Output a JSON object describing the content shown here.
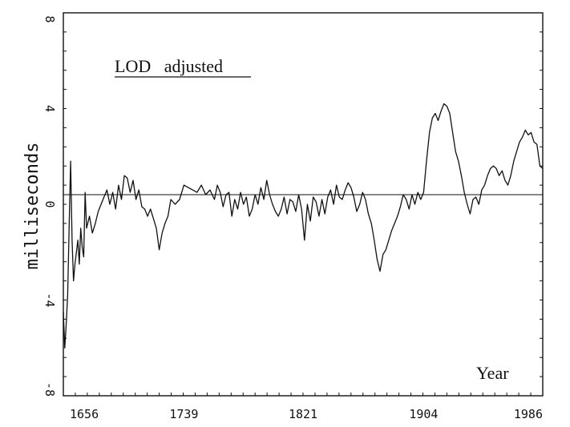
{
  "chart_data": {
    "type": "line",
    "title": "LOD   adjusted",
    "xlabel": "Year",
    "ylabel": "milliseconds",
    "xlim": [
      1656,
      1986
    ],
    "ylim": [
      -8,
      8
    ],
    "xticks": [
      "1656",
      "1739",
      "1821",
      "1904",
      "1986"
    ],
    "yticks": [
      "-8",
      "-4",
      "0",
      "4",
      "8"
    ],
    "reference_line": 0.4,
    "grid": false,
    "series": [
      {
        "x": [
          1656,
          1657,
          1658,
          1659,
          1660,
          1661,
          1662,
          1663,
          1664,
          1665,
          1666,
          1667,
          1668,
          1669,
          1670,
          1671,
          1672,
          1674,
          1676,
          1678,
          1680,
          1682,
          1684,
          1686,
          1688,
          1690,
          1692,
          1694,
          1696,
          1698,
          1700,
          1702,
          1704,
          1706,
          1708,
          1710,
          1712,
          1714,
          1716,
          1718,
          1720,
          1722,
          1724,
          1726,
          1728,
          1730,
          1733,
          1736,
          1739,
          1742,
          1745,
          1748,
          1751,
          1754,
          1757,
          1760,
          1762,
          1764,
          1766,
          1768,
          1770,
          1772,
          1774,
          1776,
          1778,
          1780,
          1782,
          1784,
          1786,
          1788,
          1790,
          1792,
          1794,
          1796,
          1798,
          1800,
          1802,
          1804,
          1806,
          1808,
          1810,
          1812,
          1814,
          1816,
          1818,
          1820,
          1822,
          1824,
          1826,
          1828,
          1830,
          1832,
          1834,
          1836,
          1838,
          1840,
          1842,
          1844,
          1846,
          1848,
          1850,
          1852,
          1854,
          1856,
          1858,
          1860,
          1862,
          1864,
          1866,
          1868,
          1870,
          1872,
          1874,
          1876,
          1878,
          1880,
          1882,
          1884,
          1886,
          1888,
          1890,
          1892,
          1894,
          1896,
          1898,
          1900,
          1902,
          1904,
          1906,
          1908,
          1910,
          1912,
          1914,
          1916,
          1918,
          1920,
          1922,
          1924,
          1926,
          1928,
          1930,
          1932,
          1934,
          1936,
          1938,
          1940,
          1942,
          1944,
          1946,
          1948,
          1950,
          1952,
          1954,
          1956,
          1958,
          1960,
          1962,
          1964,
          1966,
          1968,
          1970,
          1972,
          1974,
          1976,
          1978,
          1980,
          1982,
          1984,
          1986
        ],
        "y": [
          -4.5,
          -6.0,
          -5.0,
          -3.8,
          -1.0,
          1.8,
          -1.5,
          -3.2,
          -2.5,
          -2.0,
          -1.5,
          -2.5,
          -1.0,
          -1.8,
          -2.2,
          0.5,
          -1.0,
          -0.5,
          -1.2,
          -0.8,
          -0.3,
          0.0,
          0.3,
          0.6,
          0.0,
          0.5,
          -0.2,
          0.8,
          0.2,
          1.2,
          1.1,
          0.5,
          1.0,
          0.2,
          0.6,
          -0.1,
          -0.2,
          -0.5,
          -0.2,
          -0.6,
          -1.0,
          -1.9,
          -1.2,
          -0.8,
          -0.5,
          0.2,
          0.0,
          0.2,
          0.8,
          0.7,
          0.6,
          0.5,
          0.8,
          0.4,
          0.6,
          0.2,
          0.8,
          0.5,
          -0.1,
          0.4,
          0.5,
          -0.5,
          0.2,
          -0.2,
          0.5,
          0.0,
          0.3,
          -0.5,
          -0.2,
          0.4,
          0.0,
          0.7,
          0.2,
          1.0,
          0.4,
          0.0,
          -0.3,
          -0.5,
          -0.2,
          0.3,
          -0.4,
          0.2,
          0.1,
          -0.3,
          0.4,
          -0.2,
          -1.5,
          0.0,
          -0.7,
          0.3,
          0.1,
          -0.5,
          0.2,
          -0.4,
          0.3,
          0.6,
          0.0,
          0.8,
          0.3,
          0.2,
          0.6,
          0.9,
          0.7,
          0.3,
          -0.3,
          0.0,
          0.5,
          0.2,
          -0.4,
          -0.8,
          -1.5,
          -2.3,
          -2.8,
          -2.1,
          -1.9,
          -1.5,
          -1.1,
          -0.8,
          -0.5,
          -0.1,
          0.4,
          0.2,
          -0.2,
          0.4,
          0.0,
          0.5,
          0.2,
          0.5,
          1.8,
          3.0,
          3.6,
          3.8,
          3.5,
          3.9,
          4.2,
          4.1,
          3.8,
          3.0,
          2.2,
          1.8,
          1.2,
          0.5,
          0.0,
          -0.4,
          0.2,
          0.3,
          0.0,
          0.6,
          0.8,
          1.2,
          1.5,
          1.6,
          1.5,
          1.2,
          1.4,
          1.0,
          0.8,
          1.2,
          1.8,
          2.2,
          2.6,
          2.8,
          3.1,
          2.9,
          3.0,
          2.6,
          2.5,
          1.6,
          1.5
        ]
      }
    ]
  }
}
